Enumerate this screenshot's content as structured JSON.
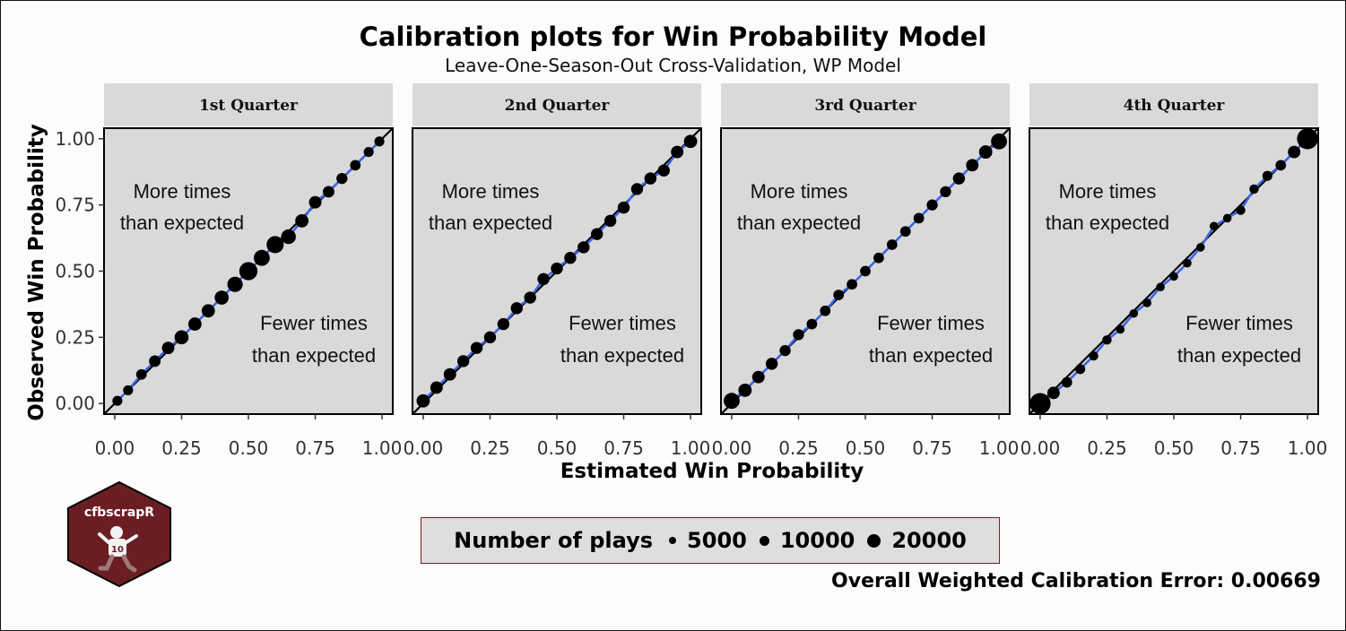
{
  "chart_data": {
    "type": "scatter",
    "title": "Calibration plots for Win Probability Model",
    "subtitle": "Leave-One-Season-Out Cross-Validation, WP Model",
    "xlabel": "Estimated Win Probability",
    "ylabel": "Observed Win Probability",
    "xlim": [
      -0.04,
      1.04
    ],
    "ylim": [
      -0.04,
      1.04
    ],
    "x_ticks": [
      "0.00",
      "0.25",
      "0.50",
      "0.75",
      "1.00"
    ],
    "y_ticks": [
      "0.00",
      "0.25",
      "0.50",
      "0.75",
      "1.00"
    ],
    "grid": false,
    "reference_line": "y = x",
    "annotations": {
      "above": [
        "More times",
        "than expected"
      ],
      "below": [
        "Fewer times",
        "than expected"
      ]
    },
    "legend": {
      "title": "Number of plays",
      "placement": "bottom",
      "entries": [
        {
          "label": "5000",
          "n": 5000
        },
        {
          "label": "10000",
          "n": 10000
        },
        {
          "label": "20000",
          "n": 20000
        }
      ]
    },
    "caption": "Overall Weighted Calibration Error: 0.00669",
    "facets": [
      {
        "label": "1st Quarter",
        "points": [
          {
            "x": 0.01,
            "y": 0.01,
            "n": 2500
          },
          {
            "x": 0.05,
            "y": 0.05,
            "n": 2500
          },
          {
            "x": 0.1,
            "y": 0.11,
            "n": 3000
          },
          {
            "x": 0.15,
            "y": 0.16,
            "n": 4000
          },
          {
            "x": 0.2,
            "y": 0.21,
            "n": 5000
          },
          {
            "x": 0.25,
            "y": 0.25,
            "n": 7000
          },
          {
            "x": 0.3,
            "y": 0.3,
            "n": 6000
          },
          {
            "x": 0.35,
            "y": 0.35,
            "n": 6000
          },
          {
            "x": 0.4,
            "y": 0.4,
            "n": 7000
          },
          {
            "x": 0.45,
            "y": 0.45,
            "n": 9000
          },
          {
            "x": 0.5,
            "y": 0.5,
            "n": 14000
          },
          {
            "x": 0.55,
            "y": 0.55,
            "n": 10000
          },
          {
            "x": 0.6,
            "y": 0.6,
            "n": 12000
          },
          {
            "x": 0.65,
            "y": 0.63,
            "n": 8000
          },
          {
            "x": 0.7,
            "y": 0.69,
            "n": 6000
          },
          {
            "x": 0.75,
            "y": 0.76,
            "n": 5000
          },
          {
            "x": 0.8,
            "y": 0.8,
            "n": 4000
          },
          {
            "x": 0.85,
            "y": 0.85,
            "n": 3500
          },
          {
            "x": 0.9,
            "y": 0.9,
            "n": 3000
          },
          {
            "x": 0.95,
            "y": 0.95,
            "n": 2500
          },
          {
            "x": 0.99,
            "y": 0.99,
            "n": 2500
          }
        ]
      },
      {
        "label": "2nd Quarter",
        "points": [
          {
            "x": 0.0,
            "y": 0.01,
            "n": 6000
          },
          {
            "x": 0.05,
            "y": 0.06,
            "n": 5000
          },
          {
            "x": 0.1,
            "y": 0.11,
            "n": 5000
          },
          {
            "x": 0.15,
            "y": 0.16,
            "n": 4500
          },
          {
            "x": 0.2,
            "y": 0.21,
            "n": 4500
          },
          {
            "x": 0.25,
            "y": 0.25,
            "n": 4500
          },
          {
            "x": 0.3,
            "y": 0.3,
            "n": 4500
          },
          {
            "x": 0.35,
            "y": 0.36,
            "n": 4500
          },
          {
            "x": 0.4,
            "y": 0.4,
            "n": 4500
          },
          {
            "x": 0.45,
            "y": 0.47,
            "n": 4500
          },
          {
            "x": 0.5,
            "y": 0.51,
            "n": 4500
          },
          {
            "x": 0.55,
            "y": 0.55,
            "n": 4500
          },
          {
            "x": 0.6,
            "y": 0.59,
            "n": 4500
          },
          {
            "x": 0.65,
            "y": 0.64,
            "n": 4500
          },
          {
            "x": 0.7,
            "y": 0.69,
            "n": 4500
          },
          {
            "x": 0.75,
            "y": 0.74,
            "n": 4500
          },
          {
            "x": 0.8,
            "y": 0.81,
            "n": 4500
          },
          {
            "x": 0.85,
            "y": 0.85,
            "n": 4500
          },
          {
            "x": 0.9,
            "y": 0.88,
            "n": 4500
          },
          {
            "x": 0.95,
            "y": 0.95,
            "n": 5000
          },
          {
            "x": 1.0,
            "y": 0.99,
            "n": 6000
          }
        ]
      },
      {
        "label": "3rd Quarter",
        "points": [
          {
            "x": 0.0,
            "y": 0.01,
            "n": 10000
          },
          {
            "x": 0.05,
            "y": 0.05,
            "n": 6000
          },
          {
            "x": 0.1,
            "y": 0.1,
            "n": 5000
          },
          {
            "x": 0.15,
            "y": 0.15,
            "n": 4500
          },
          {
            "x": 0.2,
            "y": 0.2,
            "n": 3500
          },
          {
            "x": 0.25,
            "y": 0.26,
            "n": 3500
          },
          {
            "x": 0.3,
            "y": 0.3,
            "n": 3000
          },
          {
            "x": 0.35,
            "y": 0.35,
            "n": 3000
          },
          {
            "x": 0.4,
            "y": 0.41,
            "n": 3000
          },
          {
            "x": 0.45,
            "y": 0.45,
            "n": 3000
          },
          {
            "x": 0.5,
            "y": 0.5,
            "n": 3000
          },
          {
            "x": 0.55,
            "y": 0.55,
            "n": 3000
          },
          {
            "x": 0.6,
            "y": 0.6,
            "n": 3000
          },
          {
            "x": 0.65,
            "y": 0.65,
            "n": 3000
          },
          {
            "x": 0.7,
            "y": 0.7,
            "n": 3000
          },
          {
            "x": 0.75,
            "y": 0.75,
            "n": 3500
          },
          {
            "x": 0.8,
            "y": 0.8,
            "n": 3500
          },
          {
            "x": 0.85,
            "y": 0.85,
            "n": 4500
          },
          {
            "x": 0.9,
            "y": 0.9,
            "n": 5000
          },
          {
            "x": 0.95,
            "y": 0.95,
            "n": 6000
          },
          {
            "x": 1.0,
            "y": 0.99,
            "n": 10000
          }
        ]
      },
      {
        "label": "4th Quarter",
        "points": [
          {
            "x": 0.0,
            "y": 0.0,
            "n": 20000
          },
          {
            "x": 0.05,
            "y": 0.04,
            "n": 5000
          },
          {
            "x": 0.1,
            "y": 0.08,
            "n": 3000
          },
          {
            "x": 0.15,
            "y": 0.13,
            "n": 2500
          },
          {
            "x": 0.2,
            "y": 0.18,
            "n": 2000
          },
          {
            "x": 0.25,
            "y": 0.24,
            "n": 2000
          },
          {
            "x": 0.3,
            "y": 0.28,
            "n": 1500
          },
          {
            "x": 0.35,
            "y": 0.34,
            "n": 1500
          },
          {
            "x": 0.4,
            "y": 0.38,
            "n": 1500
          },
          {
            "x": 0.45,
            "y": 0.44,
            "n": 1500
          },
          {
            "x": 0.5,
            "y": 0.48,
            "n": 1500
          },
          {
            "x": 0.55,
            "y": 0.53,
            "n": 1500
          },
          {
            "x": 0.6,
            "y": 0.59,
            "n": 1500
          },
          {
            "x": 0.65,
            "y": 0.67,
            "n": 1500
          },
          {
            "x": 0.7,
            "y": 0.7,
            "n": 1500
          },
          {
            "x": 0.75,
            "y": 0.73,
            "n": 2000
          },
          {
            "x": 0.8,
            "y": 0.81,
            "n": 2000
          },
          {
            "x": 0.85,
            "y": 0.86,
            "n": 2500
          },
          {
            "x": 0.9,
            "y": 0.9,
            "n": 3000
          },
          {
            "x": 0.95,
            "y": 0.95,
            "n": 5000
          },
          {
            "x": 1.0,
            "y": 1.0,
            "n": 20000
          }
        ]
      }
    ]
  },
  "colors": {
    "panel": "#d9d9d9",
    "strip": "#d9d9d9",
    "fit_line": "#3b66e6",
    "reference_line": "#000000",
    "points": "#000000",
    "logo_hex": "#6b1d24",
    "legend_border": "#7a1c1c"
  },
  "logo": {
    "text": "cfbscrapR",
    "icon": "football-player-icon"
  }
}
